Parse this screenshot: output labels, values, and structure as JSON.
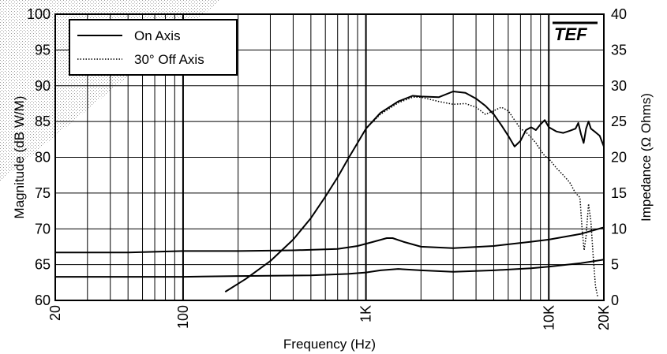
{
  "chart_data": {
    "type": "line",
    "xlabel": "Frequency (Hz)",
    "ylabel_left": "Magnitude (dB W/M)",
    "ylabel_right": "Impedance (Ω Ohms)",
    "x_scale": "log",
    "xlim": [
      20,
      20000
    ],
    "ylim_left": [
      60,
      100
    ],
    "ylim_right": [
      0,
      40
    ],
    "x_tick_labels": [
      {
        "value": 20,
        "label": "20"
      },
      {
        "value": 100,
        "label": "100"
      },
      {
        "value": 1000,
        "label": "1K"
      },
      {
        "value": 10000,
        "label": "10K"
      },
      {
        "value": 20000,
        "label": "20K"
      }
    ],
    "y_left_ticks": [
      60,
      65,
      70,
      75,
      80,
      85,
      90,
      95,
      100
    ],
    "y_right_ticks": [
      0,
      5,
      10,
      15,
      20,
      25,
      30,
      35,
      40
    ],
    "grid": true,
    "legend_position": "top-left",
    "logo": "TEF",
    "series": [
      {
        "name": "On Axis",
        "style": "solid",
        "axis": "left",
        "points": [
          [
            170,
            61.2
          ],
          [
            220,
            63
          ],
          [
            300,
            65.5
          ],
          [
            400,
            68.5
          ],
          [
            500,
            71.5
          ],
          [
            600,
            74.5
          ],
          [
            700,
            77.2
          ],
          [
            800,
            79.8
          ],
          [
            900,
            82
          ],
          [
            1000,
            84
          ],
          [
            1200,
            86.2
          ],
          [
            1500,
            87.8
          ],
          [
            1800,
            88.6
          ],
          [
            2000,
            88.5
          ],
          [
            2500,
            88.4
          ],
          [
            3000,
            89.2
          ],
          [
            3500,
            89
          ],
          [
            4000,
            88.2
          ],
          [
            4500,
            87.2
          ],
          [
            5000,
            86
          ],
          [
            5500,
            84.5
          ],
          [
            6000,
            83
          ],
          [
            6500,
            81.5
          ],
          [
            7000,
            82.3
          ],
          [
            7500,
            83.8
          ],
          [
            8000,
            84.2
          ],
          [
            8500,
            83.8
          ],
          [
            9000,
            84.6
          ],
          [
            9500,
            85.2
          ],
          [
            10000,
            84.2
          ],
          [
            11000,
            83.6
          ],
          [
            12000,
            83.4
          ],
          [
            13000,
            83.7
          ],
          [
            14000,
            84
          ],
          [
            14500,
            84.8
          ],
          [
            15000,
            83.2
          ],
          [
            15500,
            82
          ],
          [
            16000,
            84
          ],
          [
            16500,
            85
          ],
          [
            17000,
            84
          ],
          [
            18000,
            83.5
          ],
          [
            19000,
            83
          ],
          [
            20000,
            81.5
          ]
        ]
      },
      {
        "name": "30° Off Axis",
        "style": "dotted",
        "axis": "left",
        "points": [
          [
            1000,
            84
          ],
          [
            1200,
            86
          ],
          [
            1500,
            87.6
          ],
          [
            1800,
            88.4
          ],
          [
            2000,
            88.4
          ],
          [
            2500,
            87.8
          ],
          [
            3000,
            87.4
          ],
          [
            3500,
            87.5
          ],
          [
            4000,
            87
          ],
          [
            4500,
            86
          ],
          [
            5000,
            86.5
          ],
          [
            5500,
            87
          ],
          [
            6000,
            86.5
          ],
          [
            6500,
            85.2
          ],
          [
            7000,
            84
          ],
          [
            7500,
            83.5
          ],
          [
            8000,
            82.8
          ],
          [
            8500,
            82
          ],
          [
            9000,
            81
          ],
          [
            9500,
            80.2
          ],
          [
            10000,
            79.8
          ],
          [
            11000,
            78.5
          ],
          [
            12000,
            77.5
          ],
          [
            13000,
            76.5
          ],
          [
            14000,
            75
          ],
          [
            14800,
            74.4
          ],
          [
            15200,
            70
          ],
          [
            15600,
            67
          ],
          [
            16000,
            69
          ],
          [
            16500,
            73.5
          ],
          [
            17000,
            71
          ],
          [
            17500,
            66
          ],
          [
            18000,
            62
          ],
          [
            18500,
            60.5
          ]
        ]
      },
      {
        "name": "",
        "style": "solid",
        "axis": "right",
        "points": [
          [
            20,
            6.7
          ],
          [
            50,
            6.7
          ],
          [
            100,
            6.9
          ],
          [
            200,
            6.9
          ],
          [
            400,
            7
          ],
          [
            700,
            7.2
          ],
          [
            900,
            7.6
          ],
          [
            1100,
            8.2
          ],
          [
            1300,
            8.7
          ],
          [
            1400,
            8.7
          ],
          [
            1600,
            8.2
          ],
          [
            2000,
            7.5
          ],
          [
            3000,
            7.3
          ],
          [
            5000,
            7.6
          ],
          [
            8000,
            8.2
          ],
          [
            10000,
            8.5
          ],
          [
            15000,
            9.3
          ],
          [
            20000,
            10.2
          ]
        ]
      },
      {
        "name": "",
        "style": "solid",
        "axis": "right",
        "points": [
          [
            20,
            3.3
          ],
          [
            50,
            3.3
          ],
          [
            100,
            3.3
          ],
          [
            200,
            3.4
          ],
          [
            500,
            3.5
          ],
          [
            800,
            3.7
          ],
          [
            1000,
            3.9
          ],
          [
            1200,
            4.2
          ],
          [
            1500,
            4.4
          ],
          [
            2000,
            4.2
          ],
          [
            3000,
            4
          ],
          [
            5000,
            4.2
          ],
          [
            8000,
            4.5
          ],
          [
            10000,
            4.7
          ],
          [
            15000,
            5.2
          ],
          [
            20000,
            5.7
          ]
        ]
      }
    ]
  }
}
